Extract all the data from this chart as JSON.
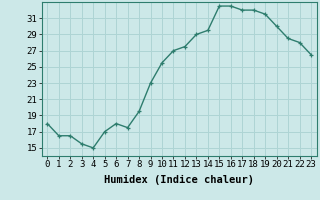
{
  "x": [
    0,
    1,
    2,
    3,
    4,
    5,
    6,
    7,
    8,
    9,
    10,
    11,
    12,
    13,
    14,
    15,
    16,
    17,
    18,
    19,
    20,
    21,
    22,
    23
  ],
  "y": [
    18,
    16.5,
    16.5,
    15.5,
    15,
    17,
    18,
    17.5,
    19.5,
    23,
    25.5,
    27,
    27.5,
    29,
    29.5,
    32.5,
    32.5,
    32,
    32,
    31.5,
    30,
    28.5,
    28,
    26.5
  ],
  "line_color": "#2e7d6e",
  "marker": "+",
  "bg_color": "#cce8e8",
  "grid_color": "#aed4d4",
  "xlabel": "Humidex (Indice chaleur)",
  "ylim": [
    14,
    33
  ],
  "xlim": [
    -0.5,
    23.5
  ],
  "yticks": [
    15,
    17,
    19,
    21,
    23,
    25,
    27,
    29,
    31
  ],
  "xticks": [
    0,
    1,
    2,
    3,
    4,
    5,
    6,
    7,
    8,
    9,
    10,
    11,
    12,
    13,
    14,
    15,
    16,
    17,
    18,
    19,
    20,
    21,
    22,
    23
  ],
  "tick_fontsize": 6.5,
  "xlabel_fontsize": 7.5,
  "linewidth": 1.0,
  "markersize": 3.5,
  "markeredgewidth": 0.9
}
